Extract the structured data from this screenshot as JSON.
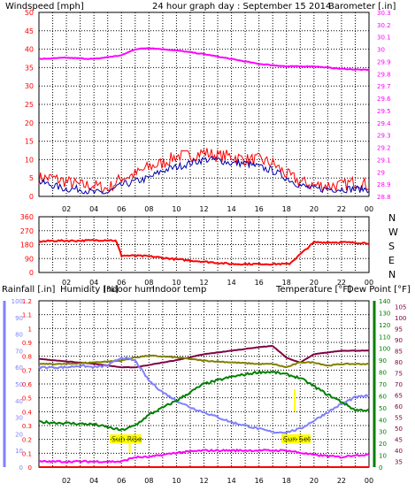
{
  "header": {
    "windspeed_label": "Windspeed [mph]",
    "title": "24 hour graph day : September 15 2014",
    "barometer_label": "Barometer [.in]"
  },
  "colors": {
    "grid": "#000000",
    "wind": "#ff0000",
    "gust_line": "#0000aa",
    "barometer": "#ff00ff",
    "direction": "#ff0000",
    "rain": "#ff0000",
    "humidity": "#8080ff",
    "indoor_hum": "#808000",
    "indoor_temp": "#800040",
    "temperature": "#008000",
    "dew_point": "#800040",
    "label_boxes": "#ffff00"
  },
  "chart_data": [
    {
      "type": "line",
      "title": "24 hour graph day : September 15 2014",
      "x_ticks": [
        "02",
        "04",
        "06",
        "08",
        "10",
        "12",
        "14",
        "16",
        "18",
        "20",
        "22",
        "00"
      ],
      "left_axis": {
        "label": "Windspeed [mph]",
        "ticks": [
          0,
          5,
          10,
          15,
          20,
          25,
          30,
          35,
          40,
          45,
          50
        ],
        "ylim": [
          0,
          50
        ]
      },
      "right_axis": {
        "label": "Barometer [.in]",
        "ticks": [
          "28.8",
          "28.9",
          "29",
          "29.1",
          "29.2",
          "29.3",
          "29.4",
          "29.5",
          "29.6",
          "29.7",
          "29.8",
          "29.9",
          "30",
          "30.1",
          "30.2",
          "30.3"
        ],
        "ylim": [
          28.8,
          30.3
        ]
      },
      "series": [
        {
          "name": "Windspeed",
          "axis": "left",
          "x": [
            0,
            1,
            2,
            3,
            4,
            5,
            6,
            7,
            8,
            9,
            10,
            11,
            12,
            13,
            14,
            15,
            16,
            17,
            18,
            19,
            20,
            21,
            22,
            23,
            24
          ],
          "values": [
            4,
            3,
            2,
            2,
            1,
            1,
            3,
            4,
            5,
            7,
            8,
            9,
            10,
            10,
            9,
            9,
            8,
            7,
            5,
            3,
            2,
            2,
            2,
            2,
            2
          ]
        },
        {
          "name": "Gust",
          "axis": "left",
          "x": [
            0,
            1,
            2,
            3,
            4,
            5,
            6,
            7,
            8,
            9,
            10,
            11,
            12,
            13,
            14,
            15,
            16,
            17,
            18,
            19,
            20,
            21,
            22,
            23,
            24
          ],
          "values": [
            5,
            5,
            4,
            3,
            3,
            2,
            5,
            6,
            8,
            9,
            11,
            11,
            12,
            11,
            11,
            10,
            10,
            9,
            6,
            4,
            3,
            3,
            3,
            4,
            3
          ]
        },
        {
          "name": "Barometer",
          "axis": "right",
          "x": [
            0,
            2,
            4,
            6,
            7,
            8,
            10,
            12,
            14,
            16,
            18,
            20,
            22,
            24
          ],
          "values": [
            29.92,
            29.93,
            29.92,
            29.95,
            30.0,
            30.01,
            29.99,
            29.96,
            29.92,
            29.88,
            29.86,
            29.86,
            29.84,
            29.83
          ]
        }
      ]
    },
    {
      "type": "line",
      "x_ticks": [
        "02",
        "04",
        "06",
        "08",
        "10",
        "12",
        "14",
        "16",
        "18",
        "20",
        "22",
        "00"
      ],
      "left_axis": {
        "ticks": [
          0,
          90,
          180,
          270,
          360
        ],
        "ylim": [
          0,
          360
        ]
      },
      "right_axis": {
        "ticks": [
          "N",
          "W",
          "S",
          "E",
          "N"
        ]
      },
      "series": [
        {
          "name": "Wind direction",
          "x": [
            0,
            1,
            3,
            5,
            5.6,
            6,
            8,
            10,
            12,
            14,
            16,
            18,
            18.2,
            20,
            22,
            24
          ],
          "values": [
            200,
            205,
            205,
            210,
            205,
            110,
            105,
            85,
            70,
            55,
            55,
            55,
            55,
            195,
            195,
            190
          ]
        }
      ]
    },
    {
      "type": "line",
      "x_ticks": [
        "02",
        "04",
        "06",
        "08",
        "10",
        "12",
        "14",
        "16",
        "18",
        "20",
        "22",
        "00"
      ],
      "labels": [
        "Rainfall [.in]",
        "Humidity [%]",
        "Indoor hum",
        "Indoor temp",
        "Temperature [°F]",
        "Dew Point [°F]"
      ],
      "annotations": [
        "Sun Rise",
        "Sun Set"
      ],
      "axes": {
        "rain": {
          "ticks": [
            "0",
            "0.1",
            "0.2",
            "0.3",
            "0.4",
            "0.5",
            "0.6",
            "0.7",
            "0.8",
            "0.9",
            "1",
            "1.1",
            "1.2"
          ],
          "ylim": [
            0,
            1.2
          ]
        },
        "humidity": {
          "ticks": [
            0,
            10,
            20,
            30,
            40,
            50,
            60,
            70,
            80,
            90,
            100
          ],
          "ylim": [
            0,
            100
          ]
        },
        "temperature": {
          "ticks": [
            0,
            10,
            20,
            30,
            40,
            50,
            60,
            70,
            80,
            90,
            100,
            110,
            120,
            130,
            140
          ],
          "ylim": [
            0,
            140
          ]
        },
        "dew_point": {
          "ticks": [
            35,
            40,
            45,
            50,
            55,
            60,
            65,
            70,
            75,
            80,
            85,
            90,
            95,
            100,
            105
          ],
          "ylim": [
            32.5,
            107.5
          ]
        }
      },
      "series": [
        {
          "name": "Rainfall",
          "axis": "rain",
          "x": [
            0,
            24
          ],
          "values": [
            0,
            0
          ]
        },
        {
          "name": "Humidity",
          "axis": "humidity",
          "x": [
            0,
            2,
            3,
            4,
            5,
            6,
            7,
            8,
            9,
            10,
            11,
            12,
            13,
            14,
            15,
            16,
            17,
            18,
            19,
            20,
            21,
            22,
            23,
            24
          ],
          "values": [
            60,
            60,
            61,
            60,
            61,
            66,
            64,
            52,
            45,
            40,
            36,
            33,
            30,
            27,
            25,
            23,
            21,
            21,
            23,
            28,
            33,
            38,
            42,
            43
          ]
        },
        {
          "name": "Indoor hum",
          "axis": "humidity",
          "x": [
            0,
            2,
            4,
            6,
            7,
            8,
            10,
            12,
            14,
            16,
            17,
            18,
            19,
            20,
            21,
            22,
            23,
            24
          ],
          "values": [
            62,
            62,
            63,
            64,
            66,
            67,
            66,
            64,
            63,
            62,
            62,
            60,
            63,
            63,
            61,
            62,
            62,
            62
          ]
        },
        {
          "name": "Indoor temp",
          "axis": "temperature",
          "x": [
            0,
            2,
            4,
            6,
            7,
            8,
            10,
            12,
            14,
            16,
            17,
            18,
            19,
            20,
            22,
            24
          ],
          "values": [
            91,
            89,
            87,
            84,
            84,
            86,
            90,
            95,
            98,
            101,
            102,
            92,
            88,
            95,
            98,
            98
          ]
        },
        {
          "name": "Temperature",
          "axis": "temperature",
          "x": [
            0,
            2,
            4,
            6,
            7,
            8,
            10,
            12,
            14,
            16,
            17,
            18,
            19,
            20,
            21,
            22,
            23,
            24
          ],
          "values": [
            38,
            37,
            36,
            31,
            35,
            44,
            56,
            70,
            76,
            80,
            80,
            78,
            75,
            68,
            61,
            55,
            48,
            48
          ]
        },
        {
          "name": "Dew Point",
          "axis": "dew_point",
          "x": [
            0,
            4,
            6,
            7,
            8,
            10,
            12,
            14,
            16,
            18,
            20,
            22,
            23,
            24
          ],
          "values": [
            35,
            35,
            35,
            37,
            37,
            39,
            40,
            40,
            40,
            40,
            38,
            37,
            38,
            38
          ]
        }
      ]
    }
  ],
  "panel2_side_labels": [
    "N",
    "W",
    "S",
    "E",
    "N"
  ],
  "panel3_header": {
    "rain": "Rainfall [.in]",
    "humidity": "Humidity [%]",
    "indoor_hum": "Indoor hum",
    "indoor_temp": "Indoor temp",
    "temperature": "Temperature [°F]",
    "dew": "Dew Point [°F]"
  },
  "annotations": {
    "sunrise": "Sun Rise",
    "sunset": "Sun Set"
  }
}
